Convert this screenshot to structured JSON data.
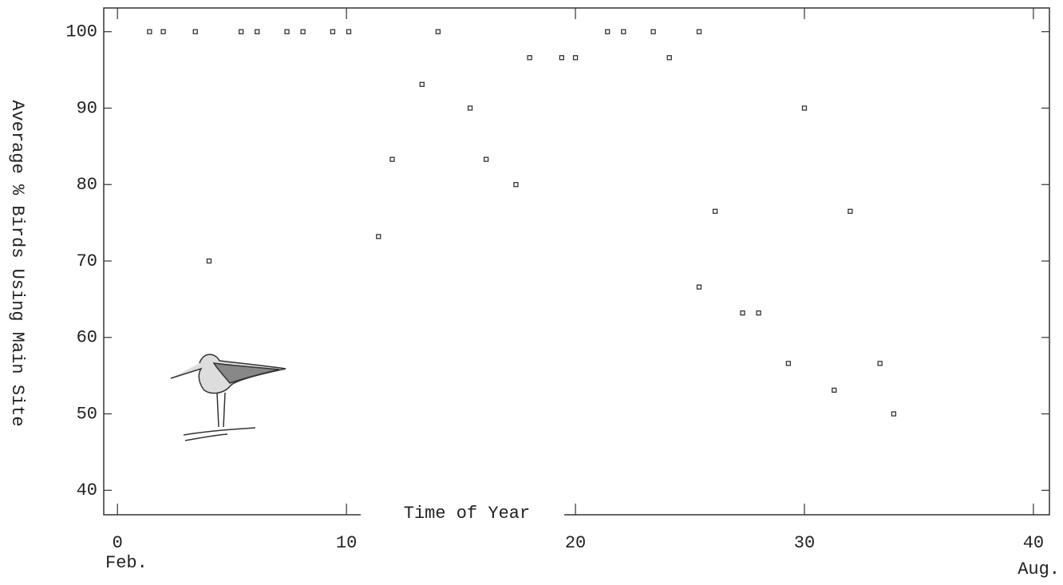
{
  "chart_data": {
    "type": "scatter",
    "x_label": "Time of Year",
    "y_label": "Average % Birds Using Main Site",
    "x_start_label": "Feb.",
    "x_end_label": "Aug.",
    "x": [
      1.4,
      2.0,
      3.4,
      5.4,
      6.1,
      7.4,
      8.1,
      9.4,
      10.1,
      4.0,
      11.4,
      12.0,
      13.3,
      14.0,
      15.4,
      16.1,
      17.4,
      18.0,
      19.4,
      20.0,
      21.4,
      22.1,
      23.4,
      24.1,
      25.4,
      25.4,
      26.1,
      27.3,
      28.0,
      29.3,
      30.0,
      31.3,
      32.0,
      33.3,
      33.9
    ],
    "series": [
      {
        "color": "#333333",
        "values": [
          100,
          100,
          100,
          100,
          100,
          100,
          100,
          100,
          100,
          70,
          73.2,
          83.3,
          93.1,
          100,
          90,
          83.3,
          80,
          96.6,
          96.6,
          96.6,
          100,
          100,
          100,
          96.6,
          100,
          66.6,
          76.5,
          63.2,
          63.2,
          56.6,
          90,
          53.1,
          76.5,
          56.6,
          50
        ]
      }
    ],
    "xlim": [
      -0.6,
      40.7
    ],
    "ylim": [
      36.8,
      103.1
    ],
    "xticks": [
      0,
      10,
      20,
      30,
      40
    ],
    "yticks": [
      40,
      50,
      60,
      70,
      80,
      90,
      100
    ],
    "grid": false
  }
}
